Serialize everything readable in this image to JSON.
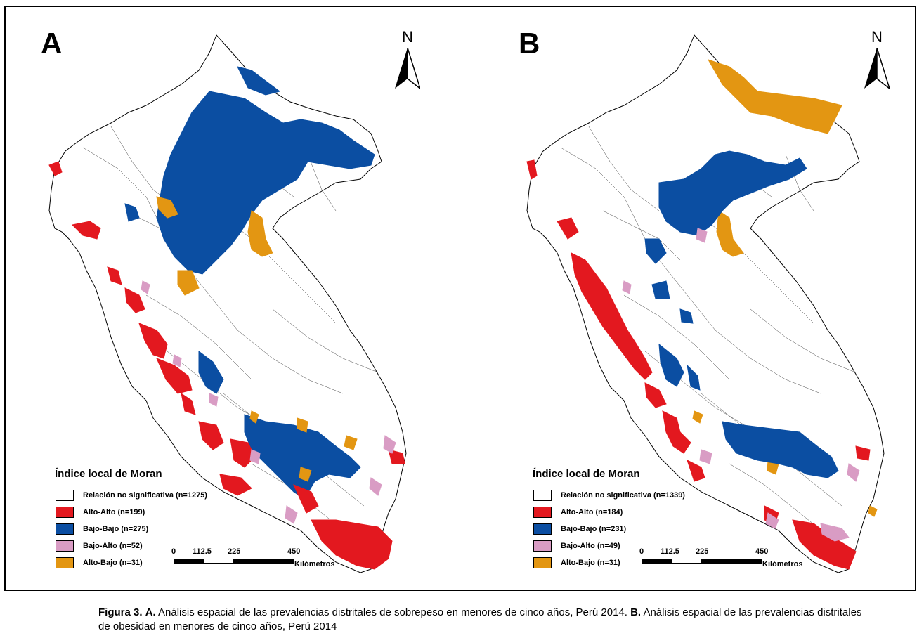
{
  "colors": {
    "alto_alto": "#e3181f",
    "bajo_bajo": "#0b4ea2",
    "bajo_alto": "#d99cc4",
    "alto_bajo": "#e39612",
    "none": "#ffffff",
    "border": "#000000"
  },
  "panels": [
    {
      "letter": "A",
      "north_label": "N",
      "legend": {
        "title": "Índice local de Moran",
        "items": [
          {
            "label": "Relación no significativa (n=1275)",
            "color_key": "none"
          },
          {
            "label": "Alto-Alto (n=199)",
            "color_key": "alto_alto"
          },
          {
            "label": "Bajo-Bajo (n=275)",
            "color_key": "bajo_bajo"
          },
          {
            "label": "Bajo-Alto (n=52)",
            "color_key": "bajo_alto"
          },
          {
            "label": "Alto-Bajo (n=31)",
            "color_key": "alto_bajo"
          }
        ]
      },
      "scale": {
        "ticks": [
          "0",
          "112.5",
          "225",
          "450"
        ],
        "unit": "Kilómetros"
      }
    },
    {
      "letter": "B",
      "north_label": "N",
      "legend": {
        "title": "Índice local de Moran",
        "items": [
          {
            "label": "Relación no significativa (n=1339)",
            "color_key": "none"
          },
          {
            "label": "Alto-Alto (n=184)",
            "color_key": "alto_alto"
          },
          {
            "label": "Bajo-Bajo (n=231)",
            "color_key": "bajo_bajo"
          },
          {
            "label": "Bajo-Alto (n=49)",
            "color_key": "bajo_alto"
          },
          {
            "label": "Alto-Bajo (n=31)",
            "color_key": "alto_bajo"
          }
        ]
      },
      "scale": {
        "ticks": [
          "0",
          "112.5",
          "225",
          "450"
        ],
        "unit": "Kilómetros"
      }
    }
  ],
  "caption": {
    "fig_label": "Figura 3.",
    "a_label": "A.",
    "a_text": "Análisis espacial de las prevalencias distritales de sobrepeso en menores de cinco años, Perú 2014.",
    "b_label": "B.",
    "b_text": "Análisis espacial de las prevalencias distritales de obesidad en menores de cinco años, Perú 2014"
  }
}
